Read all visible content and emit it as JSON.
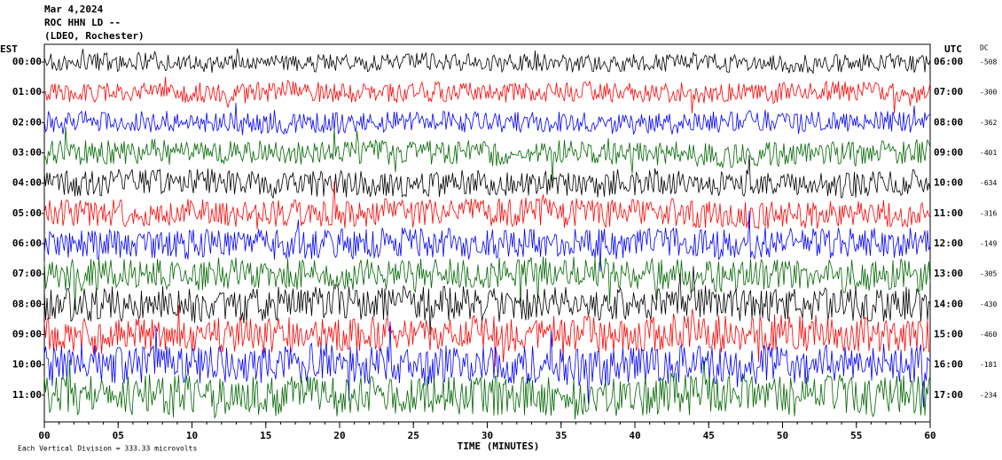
{
  "chart_data": {
    "type": "helicorder",
    "title": "Mar 4,2024",
    "subtitle": "ROC HHN LD --",
    "station": "(LDEO, Rochester)",
    "left_axis_title": "EST",
    "right_axis_title": "UTC",
    "dc_title": "DC",
    "xlabel": "TIME (MINUTES)",
    "scale_note": "Each Vertical Division = 333.33 microvolts",
    "xlim": [
      0,
      60
    ],
    "xticks": [
      {
        "value": 0,
        "label": "00"
      },
      {
        "value": 5,
        "label": "05"
      },
      10,
      15,
      20,
      25,
      30,
      35,
      40,
      45,
      50,
      55,
      60
    ],
    "est_labels": [
      "00:00",
      "01:00",
      "02:00",
      "03:00",
      "04:00",
      "05:00",
      "06:00",
      "07:00",
      "08:00",
      "09:00",
      "10:00",
      "11:00"
    ],
    "utc_labels": [
      "06:00",
      "07:00",
      "08:00",
      "09:00",
      "10:00",
      "11:00",
      "12:00",
      "13:00",
      "14:00",
      "15:00",
      "16:00",
      "17:00"
    ],
    "dc_values": [
      -508,
      -300,
      -362,
      -401,
      -634,
      -316,
      -149,
      -305,
      -430,
      -460,
      -181,
      -234
    ],
    "colors": [
      "#000000",
      "#ff0000",
      "#0000ff",
      "#006600"
    ]
  }
}
